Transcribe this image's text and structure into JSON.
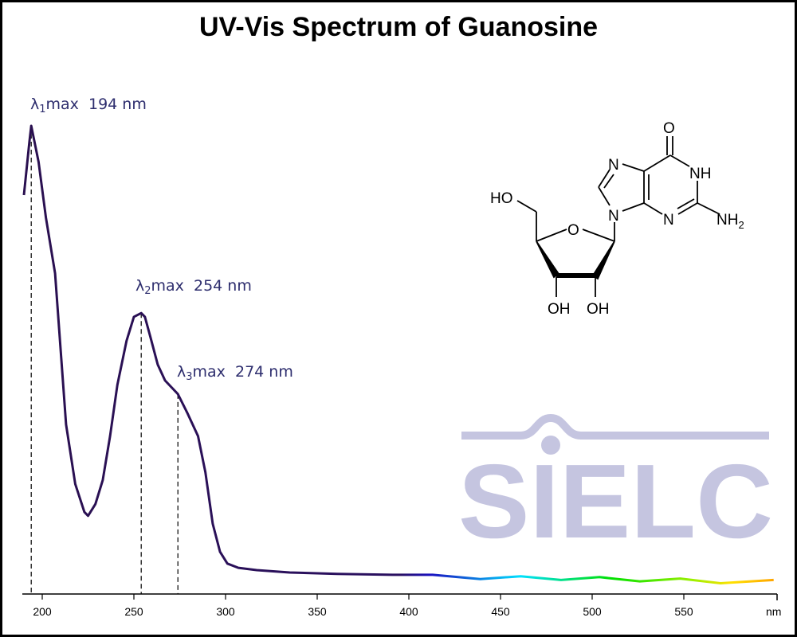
{
  "chart_data": {
    "type": "line",
    "title": "UV-Vis Spectrum of Guanosine",
    "xlabel": "nm",
    "ylabel": "",
    "xlim": [
      190,
      600
    ],
    "xticks": [
      200,
      250,
      300,
      350,
      400,
      450,
      500,
      550
    ],
    "y_axis_shown": false,
    "grid": false,
    "line_color": "#2a1050",
    "line_color_note_visible_spectrum_gradient": [
      "#2a1050",
      "#1a10c0",
      "#00e0ff",
      "#00e000",
      "#a0f000",
      "#ffe000",
      "#ffa000"
    ],
    "series": [
      {
        "x": [
          190,
          193,
          194,
          198,
          202,
          207,
          213,
          218,
          223,
          225,
          229,
          233,
          237,
          241,
          246,
          250,
          254,
          256,
          259,
          263,
          267,
          274,
          279,
          285,
          289,
          293,
          297,
          301,
          307,
          317,
          335,
          361,
          391,
          413,
          439,
          461,
          483,
          504,
          526,
          548,
          570,
          599
        ],
        "y": [
          0.852,
          0.966,
          1.0,
          0.923,
          0.804,
          0.685,
          0.362,
          0.235,
          0.175,
          0.167,
          0.192,
          0.243,
          0.337,
          0.447,
          0.541,
          0.592,
          0.6,
          0.592,
          0.549,
          0.49,
          0.456,
          0.427,
          0.388,
          0.337,
          0.26,
          0.15,
          0.09,
          0.065,
          0.056,
          0.051,
          0.046,
          0.043,
          0.041,
          0.037,
          0.036,
          0.034,
          0.034,
          0.032,
          0.031,
          0.029,
          0.027,
          0.026
        ]
      }
    ],
    "annotations": [
      {
        "symbol": "λ",
        "sub": "1",
        "text": "max  194 nm",
        "x": 194
      },
      {
        "symbol": "λ",
        "sub": "2",
        "text": "max  254 nm",
        "x": 254
      },
      {
        "symbol": "λ",
        "sub": "3",
        "text": "max  274 nm",
        "x": 274
      }
    ]
  },
  "structure": {
    "labels": {
      "o_carbonyl": "O",
      "nh": "NH",
      "n7": "N",
      "n9": "N",
      "n3": "N",
      "nh2": "NH",
      "nh2_sub": "2",
      "ho": "HO",
      "o_ring": "O",
      "oh1": "OH",
      "oh2": "OH"
    }
  },
  "watermark": "SIELC"
}
